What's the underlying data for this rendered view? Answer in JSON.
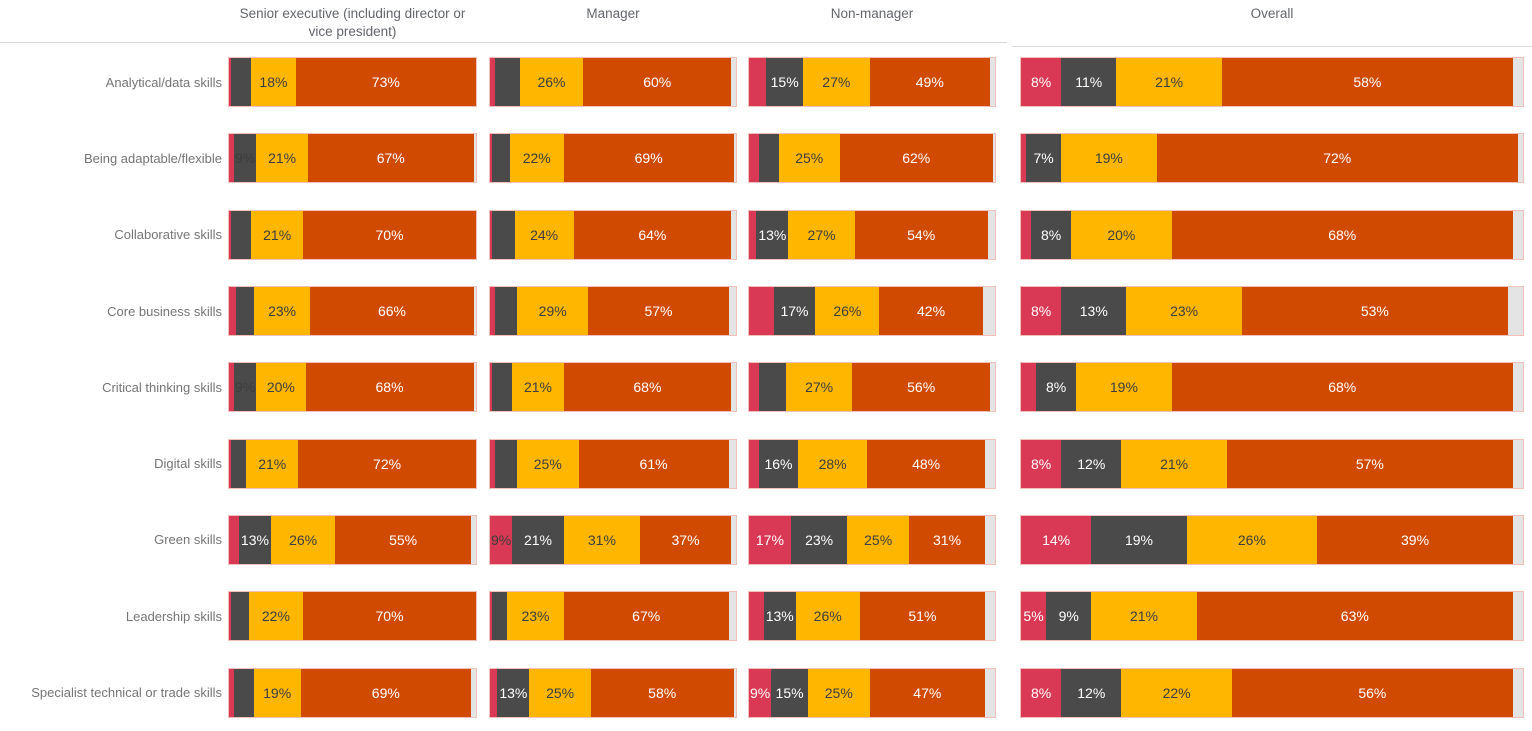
{
  "page": {
    "background": "#ffffff"
  },
  "colors": {
    "pink": "#d93954",
    "dark_gray": "#4a4a4a",
    "amber": "#ffb600",
    "orange": "#d04a02",
    "track": "#e4e4e4",
    "bar_border": "#f2c0ba",
    "header_text": "#63666b",
    "row_label_text": "#757575",
    "divider": "#d9d9d9"
  },
  "chart_data": {
    "type": "bar",
    "orientation": "horizontal",
    "stacked": true,
    "unit": "percent",
    "axis_range": [
      0,
      100
    ],
    "legend": "none",
    "value_labels": "inside-segments",
    "segment_order": [
      "pink",
      "dark-gray",
      "amber",
      "orange"
    ],
    "segment_colors": {
      "pink": "#d93954",
      "dark-gray": "#4a4a4a",
      "amber": "#ffb600",
      "orange": "#d04a02"
    },
    "groups": [
      "Senior executive (including director or vice president)",
      "Manager",
      "Non-manager",
      "Overall"
    ],
    "rows": [
      {
        "label": "Analytical/data skills",
        "cells": [
          {
            "values": [
              1,
              8,
              18,
              73
            ],
            "labels": [
              null,
              null,
              "18%",
              "73%"
            ]
          },
          {
            "values": [
              2,
              10,
              26,
              60
            ],
            "labels": [
              null,
              null,
              "26%",
              "60%"
            ]
          },
          {
            "values": [
              7,
              15,
              27,
              49
            ],
            "labels": [
              null,
              "15%",
              "27%",
              "49%"
            ]
          },
          {
            "values": [
              8,
              11,
              21,
              58
            ],
            "labels": [
              "8%",
              "11%",
              "21%",
              "58%"
            ]
          }
        ]
      },
      {
        "label": "Being adaptable/flexible",
        "cells": [
          {
            "values": [
              2,
              9,
              21,
              67
            ],
            "labels": [
              null,
              "9%",
              "21%",
              "67%"
            ],
            "overlap": [
              1
            ]
          },
          {
            "values": [
              1,
              7,
              22,
              69
            ],
            "labels": [
              null,
              null,
              "22%",
              "69%"
            ]
          },
          {
            "values": [
              4,
              8,
              25,
              62
            ],
            "labels": [
              null,
              null,
              "25%",
              "62%"
            ]
          },
          {
            "values": [
              1,
              7,
              19,
              72
            ],
            "labels": [
              null,
              "7%",
              "19%",
              "72%"
            ]
          }
        ]
      },
      {
        "label": "Collaborative skills",
        "cells": [
          {
            "values": [
              1,
              8,
              21,
              70
            ],
            "labels": [
              null,
              null,
              "21%",
              "70%"
            ]
          },
          {
            "values": [
              1,
              9,
              24,
              64
            ],
            "labels": [
              null,
              null,
              "24%",
              "64%"
            ]
          },
          {
            "values": [
              3,
              13,
              27,
              54
            ],
            "labels": [
              null,
              "13%",
              "27%",
              "54%"
            ]
          },
          {
            "values": [
              2,
              8,
              20,
              68
            ],
            "labels": [
              null,
              "8%",
              "20%",
              "68%"
            ]
          }
        ]
      },
      {
        "label": "Core business skills",
        "cells": [
          {
            "values": [
              3,
              7,
              23,
              66
            ],
            "labels": [
              null,
              null,
              "23%",
              "66%"
            ]
          },
          {
            "values": [
              2,
              9,
              29,
              57
            ],
            "labels": [
              null,
              null,
              "29%",
              "57%"
            ]
          },
          {
            "values": [
              10,
              17,
              26,
              42
            ],
            "labels": [
              null,
              "17%",
              "26%",
              "42%"
            ]
          },
          {
            "values": [
              8,
              13,
              23,
              53
            ],
            "labels": [
              "8%",
              "13%",
              "23%",
              "53%"
            ]
          }
        ]
      },
      {
        "label": "Critical thinking skills",
        "cells": [
          {
            "values": [
              2,
              9,
              20,
              68
            ],
            "labels": [
              null,
              "9%",
              "20%",
              "68%"
            ],
            "overlap": [
              1
            ]
          },
          {
            "values": [
              1,
              8,
              21,
              68
            ],
            "labels": [
              null,
              null,
              "21%",
              "68%"
            ]
          },
          {
            "values": [
              4,
              11,
              27,
              56
            ],
            "labels": [
              null,
              null,
              "27%",
              "56%"
            ]
          },
          {
            "values": [
              3,
              8,
              19,
              68
            ],
            "labels": [
              null,
              "8%",
              "19%",
              "68%"
            ]
          }
        ]
      },
      {
        "label": "Digital skills",
        "cells": [
          {
            "values": [
              1,
              6,
              21,
              72
            ],
            "labels": [
              null,
              null,
              "21%",
              "72%"
            ]
          },
          {
            "values": [
              2,
              9,
              25,
              61
            ],
            "labels": [
              null,
              null,
              "25%",
              "61%"
            ]
          },
          {
            "values": [
              4,
              16,
              28,
              48
            ],
            "labels": [
              null,
              "16%",
              "28%",
              "48%"
            ]
          },
          {
            "values": [
              8,
              12,
              21,
              57
            ],
            "labels": [
              "8%",
              "12%",
              "21%",
              "57%"
            ]
          }
        ]
      },
      {
        "label": "Green skills",
        "cells": [
          {
            "values": [
              4,
              13,
              26,
              55
            ],
            "labels": [
              null,
              "13%",
              "26%",
              "55%"
            ]
          },
          {
            "values": [
              9,
              21,
              31,
              37
            ],
            "labels": [
              "9%",
              "21%",
              "31%",
              "37%"
            ],
            "overlap": [
              0
            ]
          },
          {
            "values": [
              17,
              23,
              25,
              31
            ],
            "labels": [
              "17%",
              "23%",
              "25%",
              "31%"
            ]
          },
          {
            "values": [
              14,
              19,
              26,
              39
            ],
            "labels": [
              "14%",
              "19%",
              "26%",
              "39%"
            ]
          }
        ]
      },
      {
        "label": "Leadership skills",
        "cells": [
          {
            "values": [
              1,
              7,
              22,
              70
            ],
            "labels": [
              null,
              null,
              "22%",
              "70%"
            ]
          },
          {
            "values": [
              1,
              6,
              23,
              67
            ],
            "labels": [
              null,
              null,
              "23%",
              "67%"
            ]
          },
          {
            "values": [
              6,
              13,
              26,
              51
            ],
            "labels": [
              null,
              "13%",
              "26%",
              "51%"
            ]
          },
          {
            "values": [
              5,
              9,
              21,
              63
            ],
            "labels": [
              "5%",
              "9%",
              "21%",
              "63%"
            ]
          }
        ]
      },
      {
        "label": "Specialist technical or trade skills",
        "cells": [
          {
            "values": [
              2,
              8,
              19,
              69
            ],
            "labels": [
              null,
              null,
              "19%",
              "69%"
            ]
          },
          {
            "values": [
              3,
              13,
              25,
              58
            ],
            "labels": [
              null,
              "13%",
              "25%",
              "58%"
            ]
          },
          {
            "values": [
              9,
              15,
              25,
              47
            ],
            "labels": [
              "9%",
              "15%",
              "25%",
              "47%"
            ]
          },
          {
            "values": [
              8,
              12,
              22,
              56
            ],
            "labels": [
              "8%",
              "12%",
              "22%",
              "56%"
            ]
          }
        ]
      }
    ]
  }
}
